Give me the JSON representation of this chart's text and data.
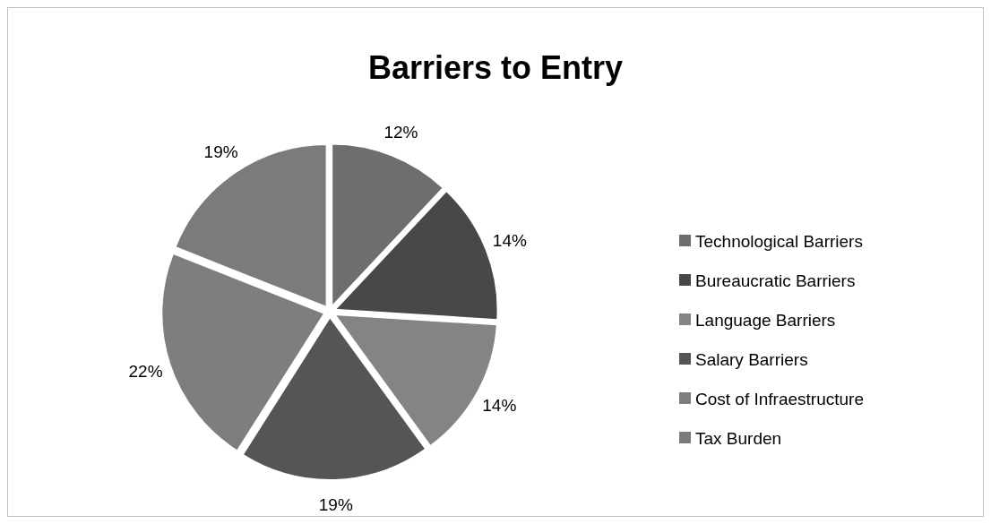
{
  "chart_data": {
    "type": "pie",
    "title": "Barriers to Entry",
    "categories": [
      "Technological Barriers",
      "Bureaucratic Barriers",
      "Language Barriers",
      "Salary Barriers",
      "Cost of Infraestructure",
      "Tax Burden"
    ],
    "values": [
      12,
      14,
      14,
      19,
      22,
      19
    ],
    "colors": [
      "#6e6e6e",
      "#484848",
      "#848484",
      "#555555",
      "#7e7e7e",
      "#7b7b7b"
    ],
    "value_labels": [
      "12%",
      "14%",
      "14%",
      "19%",
      "22%",
      "19%"
    ],
    "legend": "right"
  }
}
